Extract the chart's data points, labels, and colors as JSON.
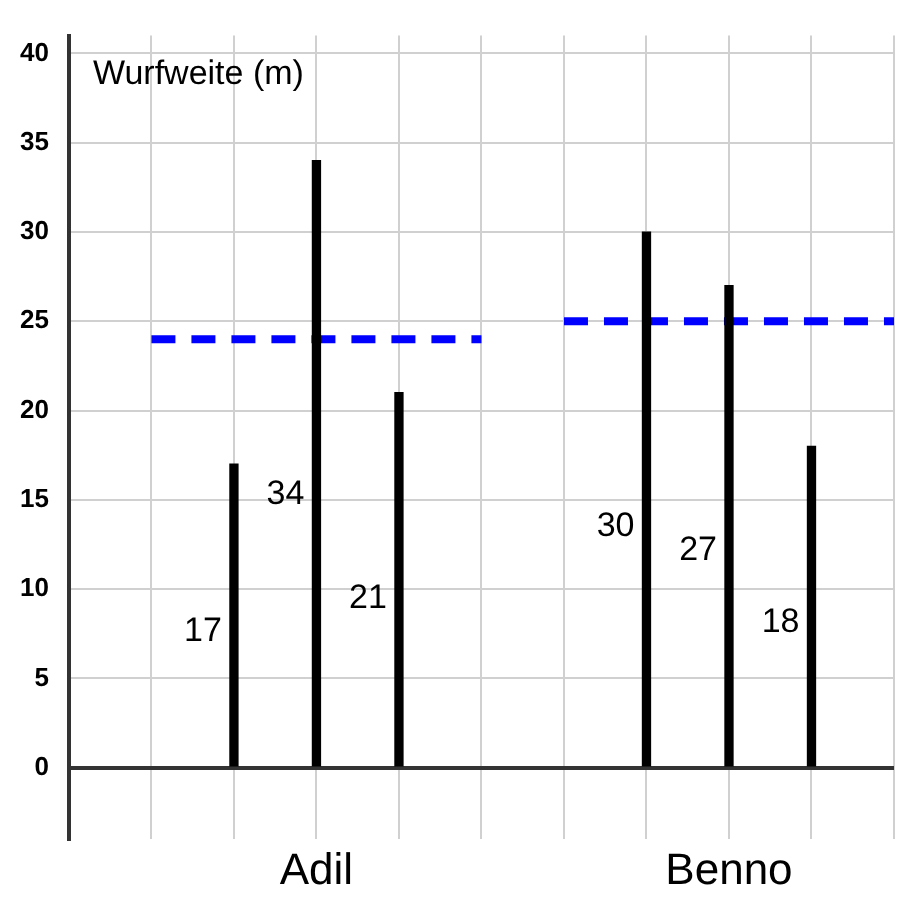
{
  "chart_data": {
    "type": "bar",
    "ylabel": "Wurfweite (m)",
    "categories": [
      null,
      null,
      null,
      "Adil",
      null,
      null,
      null,
      null,
      "Benno",
      null,
      null
    ],
    "series": [
      {
        "color": "#000000",
        "values": [
          null,
          null,
          17,
          34,
          21,
          null,
          null,
          30,
          27,
          18,
          null
        ],
        "value_labels": [
          null,
          null,
          "17",
          "34",
          "21",
          null,
          null,
          "30",
          "27",
          "18",
          null
        ]
      },
      {
        "type": "line",
        "color": "#0000ff",
        "line_style": "dashed",
        "marker": "none",
        "values": [
          null,
          24,
          24,
          24,
          24,
          24,
          null,
          null,
          null,
          null,
          null
        ]
      },
      {
        "type": "line",
        "color": "#0000ff",
        "line_style": "dashed",
        "marker": "none",
        "values": [
          null,
          null,
          null,
          null,
          null,
          null,
          25,
          25,
          25,
          25,
          25
        ]
      }
    ],
    "ylim": [
      -4,
      41
    ],
    "yticks": [
      0,
      5,
      10,
      15,
      20,
      25,
      30,
      35,
      40
    ],
    "grid": true,
    "legend": false
  }
}
